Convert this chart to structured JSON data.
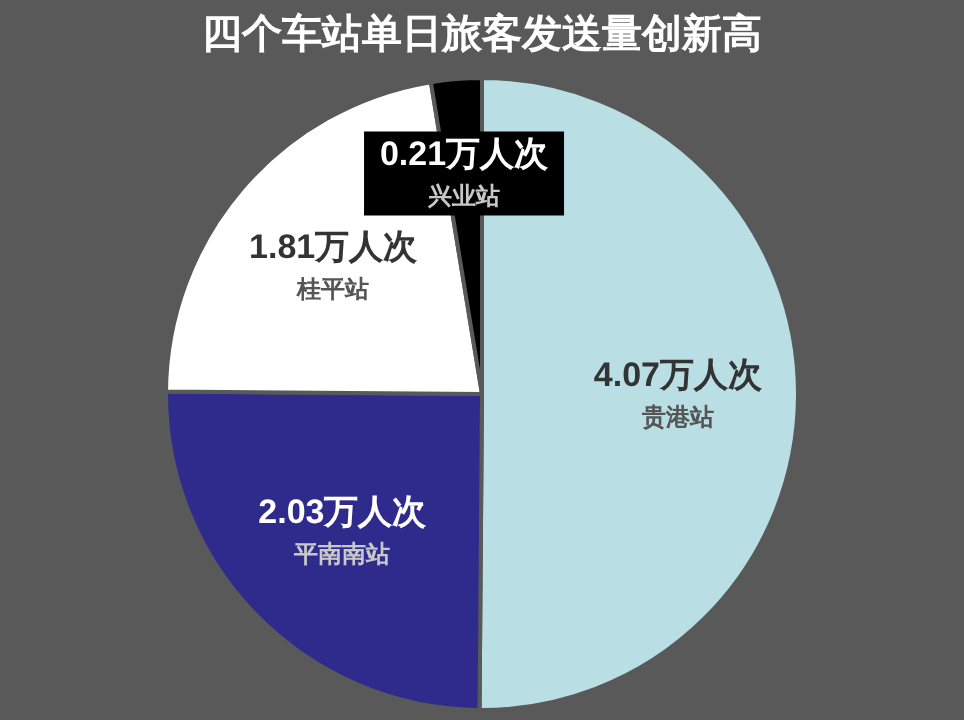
{
  "chart_data": {
    "type": "pie",
    "title": "四个车站单日旅客发送量创新高",
    "categories": [
      "贵港站",
      "平南南站",
      "桂平站",
      "兴业站"
    ],
    "values": [
      4.07,
      2.03,
      1.81,
      0.21
    ],
    "value_labels": [
      "4.07万人次",
      "2.03万人次",
      "1.81万人次",
      "0.21万人次"
    ],
    "colors": [
      "#b9dfe4",
      "#2f2b8c",
      "#ffffff",
      "#000000"
    ],
    "legend": false
  }
}
